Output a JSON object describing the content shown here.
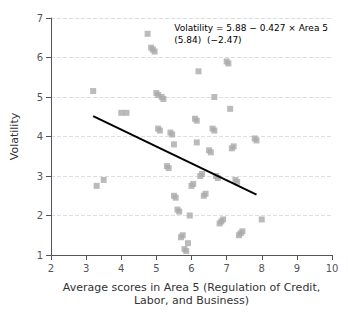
{
  "chart_data": {
    "type": "scatter",
    "xlabel": "Average scores in Area 5 (Regulation of Credit,\nLabor, and Business)",
    "ylabel": "Volatility",
    "annotations": [
      "Volatility = 5.88 − 0.427 × Area 5",
      "(5.84)  (−2.47)"
    ],
    "xlim": [
      2,
      10
    ],
    "ylim": [
      1,
      7
    ],
    "xticks": [
      2,
      3,
      4,
      5,
      6,
      7,
      8,
      9,
      10
    ],
    "yticks": [
      1,
      2,
      3,
      4,
      5,
      6,
      7
    ],
    "grid": "y",
    "series": [
      {
        "type": "scatter",
        "color": "#aaaaaa",
        "marker": "square",
        "x": [
          3.2,
          3.3,
          3.5,
          4.0,
          4.15,
          4.75,
          4.85,
          4.9,
          4.95,
          5.0,
          5.05,
          5.05,
          5.1,
          5.15,
          5.2,
          5.3,
          5.35,
          5.4,
          5.45,
          5.5,
          5.5,
          5.55,
          5.6,
          5.65,
          5.7,
          5.75,
          5.8,
          5.85,
          5.9,
          5.95,
          6.0,
          6.05,
          6.1,
          6.15,
          6.15,
          6.2,
          6.25,
          6.3,
          6.35,
          6.4,
          6.5,
          6.55,
          6.6,
          6.65,
          6.65,
          6.7,
          6.75,
          6.8,
          6.85,
          6.9,
          7.0,
          7.05,
          7.1,
          7.15,
          7.2,
          7.25,
          7.3,
          7.35,
          7.4,
          7.45,
          7.8,
          7.85,
          8.0
        ],
        "values": [
          5.15,
          2.75,
          2.9,
          4.6,
          4.6,
          6.6,
          6.25,
          6.2,
          6.15,
          5.1,
          5.05,
          4.2,
          4.15,
          5.0,
          4.95,
          3.25,
          3.2,
          4.1,
          4.05,
          3.8,
          2.5,
          2.45,
          2.15,
          2.1,
          1.45,
          1.5,
          1.15,
          1.1,
          1.3,
          2.0,
          2.75,
          2.8,
          4.45,
          4.4,
          3.85,
          5.65,
          3.0,
          3.05,
          2.5,
          2.55,
          3.65,
          3.6,
          4.2,
          4.15,
          5.0,
          3.0,
          2.95,
          1.8,
          1.85,
          1.9,
          5.9,
          5.85,
          4.7,
          3.7,
          3.75,
          2.9,
          2.85,
          1.5,
          1.55,
          1.6,
          3.95,
          3.9,
          1.9
        ]
      },
      {
        "type": "line",
        "color": "#000000",
        "line_style": "solid",
        "x": [
          3.2,
          7.85
        ],
        "values": [
          4.5136,
          2.52805
        ]
      }
    ]
  }
}
